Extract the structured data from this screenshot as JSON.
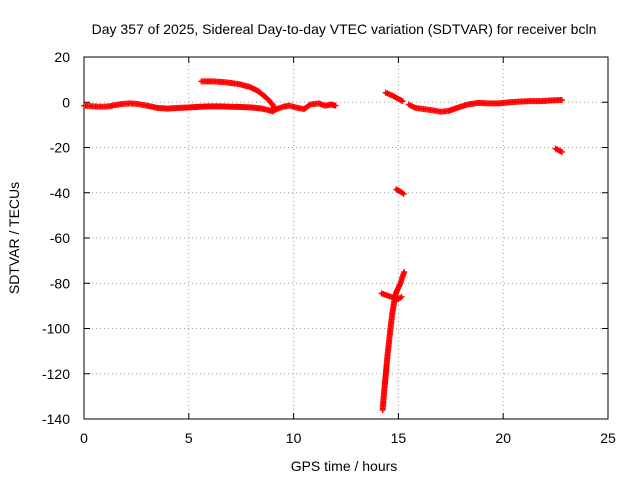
{
  "chart_data": {
    "type": "scatter",
    "title": "Day 357 of 2025, Sidereal Day-to-day VTEC variation (SDTVAR) for receiver bcln",
    "xlabel": "GPS time / hours",
    "ylabel": "SDTVAR / TECUs",
    "xlim": [
      0,
      25
    ],
    "ylim": [
      -140,
      20
    ],
    "xticks": [
      0,
      5,
      10,
      15,
      20,
      25
    ],
    "yticks": [
      20,
      0,
      -20,
      -40,
      -60,
      -80,
      -100,
      -120,
      -140
    ],
    "grid": true,
    "marker": "plus",
    "color": "#ff0000",
    "series": [
      {
        "segments": [
          [
            [
              0.0,
              -1.5
            ],
            [
              0.4,
              -1.8
            ],
            [
              0.8,
              -2.0
            ],
            [
              1.2,
              -1.8
            ],
            [
              1.5,
              -1.2
            ],
            [
              1.8,
              -0.8
            ],
            [
              2.2,
              -0.5
            ],
            [
              2.6,
              -0.8
            ],
            [
              3.0,
              -1.5
            ],
            [
              3.5,
              -2.5
            ],
            [
              4.0,
              -2.8
            ],
            [
              4.5,
              -2.5
            ],
            [
              5.0,
              -2.3
            ],
            [
              5.5,
              -2.0
            ],
            [
              6.0,
              -1.8
            ],
            [
              6.5,
              -1.8
            ],
            [
              7.0,
              -2.0
            ],
            [
              7.5,
              -2.1
            ],
            [
              8.0,
              -2.3
            ],
            [
              8.5,
              -2.8
            ],
            [
              8.8,
              -3.5
            ],
            [
              9.0,
              -4.0
            ],
            [
              9.2,
              -3.0
            ],
            [
              9.5,
              -2.0
            ],
            [
              9.8,
              -1.5
            ],
            [
              10.2,
              -2.5
            ],
            [
              10.5,
              -3.0
            ],
            [
              10.8,
              -1.0
            ],
            [
              11.2,
              -0.5
            ],
            [
              11.5,
              -1.5
            ],
            [
              11.8,
              -1.0
            ],
            [
              12.0,
              -1.5
            ]
          ],
          [
            [
              5.6,
              9.2
            ],
            [
              6.2,
              9.2
            ],
            [
              6.8,
              8.8
            ],
            [
              7.4,
              8.0
            ],
            [
              7.9,
              6.8
            ],
            [
              8.3,
              5.0
            ],
            [
              8.7,
              2.0
            ],
            [
              9.0,
              -1.0
            ],
            [
              9.1,
              -3.0
            ]
          ],
          [
            [
              14.4,
              4.2
            ],
            [
              14.7,
              3.0
            ],
            [
              15.0,
              1.5
            ],
            [
              15.2,
              0.5
            ]
          ],
          [
            [
              15.5,
              -1.0
            ],
            [
              15.8,
              -2.5
            ],
            [
              16.2,
              -3.0
            ],
            [
              16.6,
              -3.5
            ],
            [
              17.0,
              -4.2
            ],
            [
              17.4,
              -3.8
            ],
            [
              17.8,
              -2.5
            ],
            [
              18.3,
              -1.0
            ],
            [
              18.8,
              -0.3
            ],
            [
              19.3,
              -0.5
            ],
            [
              19.8,
              -0.5
            ],
            [
              20.3,
              0.0
            ],
            [
              20.8,
              0.3
            ],
            [
              21.3,
              0.5
            ],
            [
              21.8,
              0.5
            ],
            [
              22.3,
              0.8
            ],
            [
              22.8,
              1.0
            ]
          ],
          [
            [
              22.5,
              -20.5
            ],
            [
              22.8,
              -22.0
            ]
          ],
          [
            [
              14.9,
              -38.5
            ],
            [
              15.1,
              -39.5
            ],
            [
              15.25,
              -40.5
            ]
          ],
          [
            [
              14.2,
              -84.5
            ],
            [
              14.5,
              -85.5
            ],
            [
              14.8,
              -86.5
            ],
            [
              15.0,
              -87.0
            ],
            [
              15.15,
              -86.0
            ]
          ],
          [
            [
              14.25,
              -136.0
            ],
            [
              14.3,
              -130.0
            ],
            [
              14.36,
              -124.0
            ],
            [
              14.42,
              -118.0
            ],
            [
              14.48,
              -112.0
            ],
            [
              14.55,
              -106.0
            ],
            [
              14.62,
              -100.0
            ],
            [
              14.7,
              -94.0
            ],
            [
              14.8,
              -88.0
            ],
            [
              14.9,
              -84.0
            ],
            [
              15.0,
              -82.0
            ],
            [
              15.1,
              -80.0
            ],
            [
              15.2,
              -77.0
            ],
            [
              15.28,
              -75.0
            ]
          ]
        ]
      }
    ]
  }
}
